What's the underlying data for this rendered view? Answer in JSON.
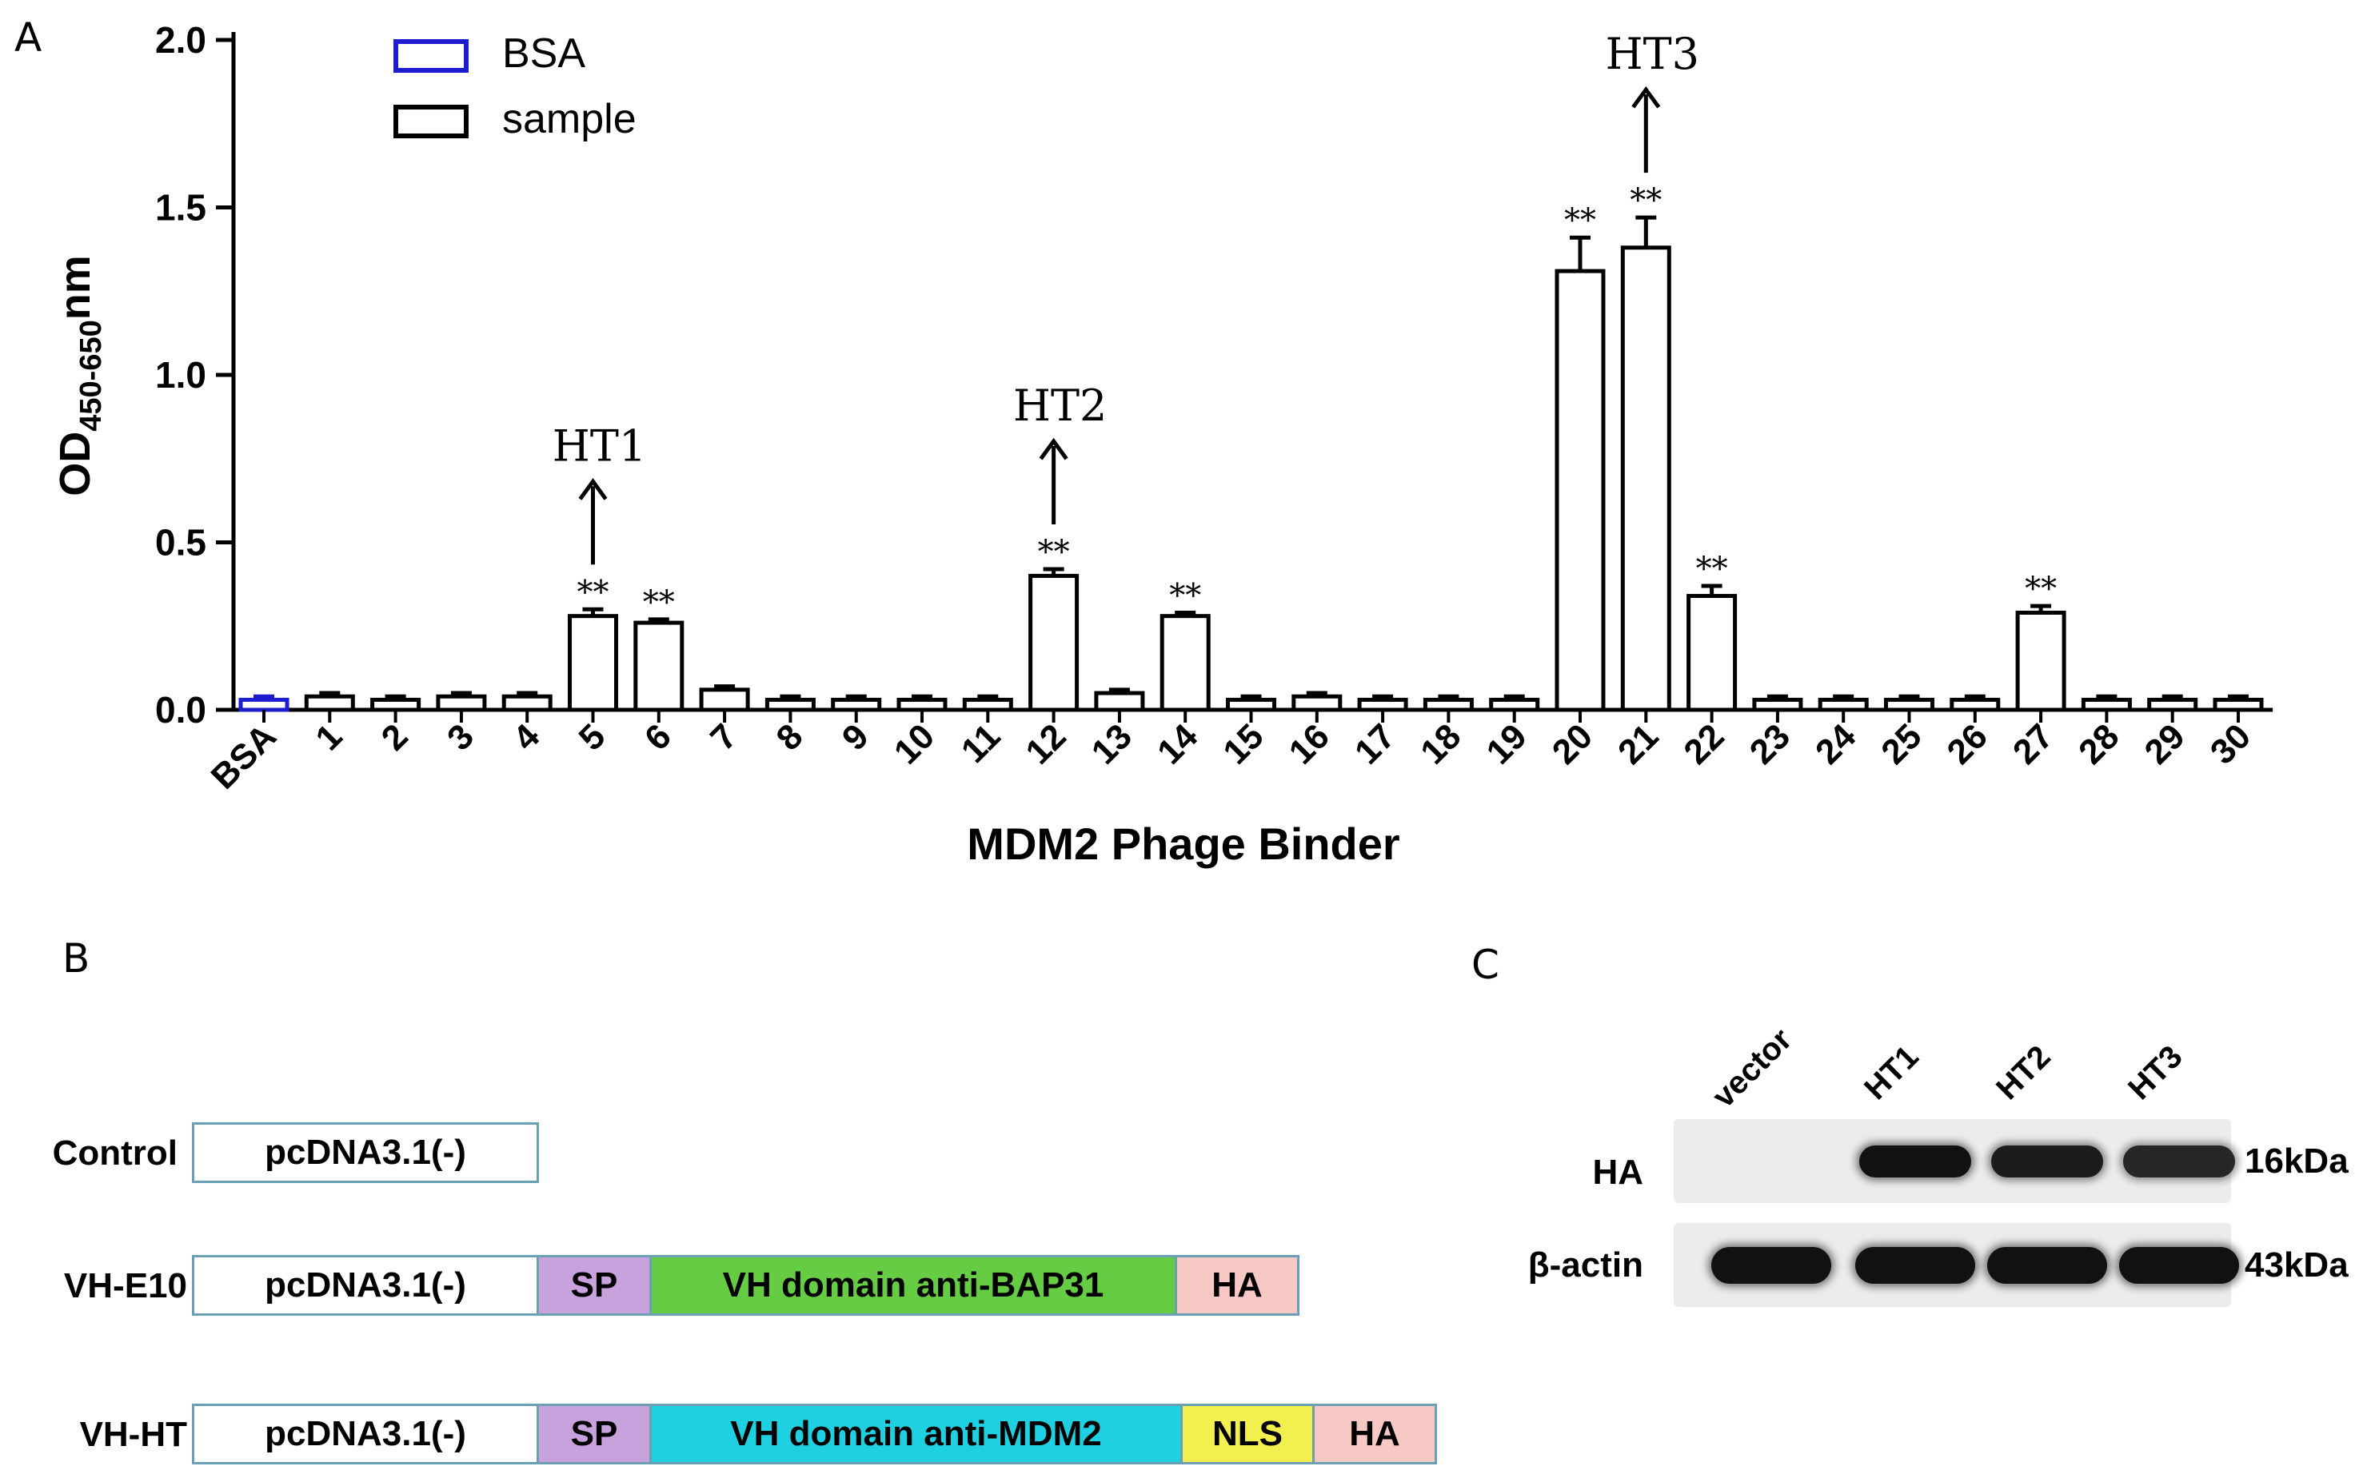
{
  "panels": {
    "a": "A",
    "b": "B",
    "c": "C"
  },
  "chart_data": {
    "type": "bar",
    "xlabel": "MDM2 Phage Binder",
    "ylabel_main": "OD",
    "ylabel_sub": "450-650",
    "ylabel_unit": "nm",
    "ylim": [
      0,
      2.0
    ],
    "yticks": [
      "0.0",
      "0.5",
      "1.0",
      "1.5",
      "2.0"
    ],
    "categories": [
      "BSA",
      "1",
      "2",
      "3",
      "4",
      "5",
      "6",
      "7",
      "8",
      "9",
      "10",
      "11",
      "12",
      "13",
      "14",
      "15",
      "16",
      "17",
      "18",
      "19",
      "20",
      "21",
      "22",
      "23",
      "24",
      "25",
      "26",
      "27",
      "28",
      "29",
      "30"
    ],
    "values": [
      0.03,
      0.04,
      0.03,
      0.04,
      0.04,
      0.28,
      0.26,
      0.06,
      0.03,
      0.03,
      0.03,
      0.03,
      0.4,
      0.05,
      0.28,
      0.03,
      0.04,
      0.03,
      0.03,
      0.03,
      1.31,
      1.38,
      0.34,
      0.03,
      0.03,
      0.03,
      0.03,
      0.29,
      0.03,
      0.03,
      0.03
    ],
    "errors": [
      0.01,
      0.01,
      0.01,
      0.01,
      0.01,
      0.02,
      0.01,
      0.01,
      0.01,
      0.01,
      0.01,
      0.01,
      0.02,
      0.01,
      0.01,
      0.01,
      0.01,
      0.01,
      0.01,
      0.01,
      0.1,
      0.09,
      0.03,
      0.01,
      0.01,
      0.01,
      0.01,
      0.02,
      0.01,
      0.01,
      0.01
    ],
    "significant": [
      5,
      6,
      12,
      14,
      20,
      21,
      22,
      27
    ],
    "significance_mark": "**",
    "legend": [
      {
        "label": "BSA",
        "color": "#1d1dcf"
      },
      {
        "label": "sample",
        "color": "#000000"
      }
    ],
    "legend_position": "top-left",
    "annotations": [
      {
        "text": "HT1",
        "category": "5"
      },
      {
        "text": "HT2",
        "category": "12"
      },
      {
        "text": "HT3",
        "category": "21"
      }
    ]
  },
  "constructs": [
    {
      "label": "Control",
      "segments": [
        {
          "text": "pcDNA3.1(-)",
          "color": "#ffffff"
        }
      ]
    },
    {
      "label": "VH-E10",
      "segments": [
        {
          "text": "pcDNA3.1(-)",
          "color": "#ffffff"
        },
        {
          "text": "SP",
          "color": "#c8a2dc"
        },
        {
          "text": "VH domain anti-BAP31",
          "color": "#66cc44"
        },
        {
          "text": "HA",
          "color": "#f7c9c5"
        }
      ]
    },
    {
      "label": "VH-HT",
      "segments": [
        {
          "text": "pcDNA3.1(-)",
          "color": "#ffffff"
        },
        {
          "text": "SP",
          "color": "#c8a2dc"
        },
        {
          "text": "VH domain anti-MDM2",
          "color": "#1fd0e2"
        },
        {
          "text": "NLS",
          "color": "#f1f04f"
        },
        {
          "text": "HA",
          "color": "#f7c9c5"
        }
      ]
    }
  ],
  "blot": {
    "lanes": [
      "vector",
      "HT1",
      "HT2",
      "HT3"
    ],
    "rows": [
      {
        "label": "HA",
        "size": "16kDa",
        "intensity": [
          0,
          1,
          0.95,
          0.9
        ]
      },
      {
        "label": "β-actin",
        "size": "43kDa",
        "intensity": [
          1,
          1,
          1,
          1
        ]
      }
    ]
  }
}
